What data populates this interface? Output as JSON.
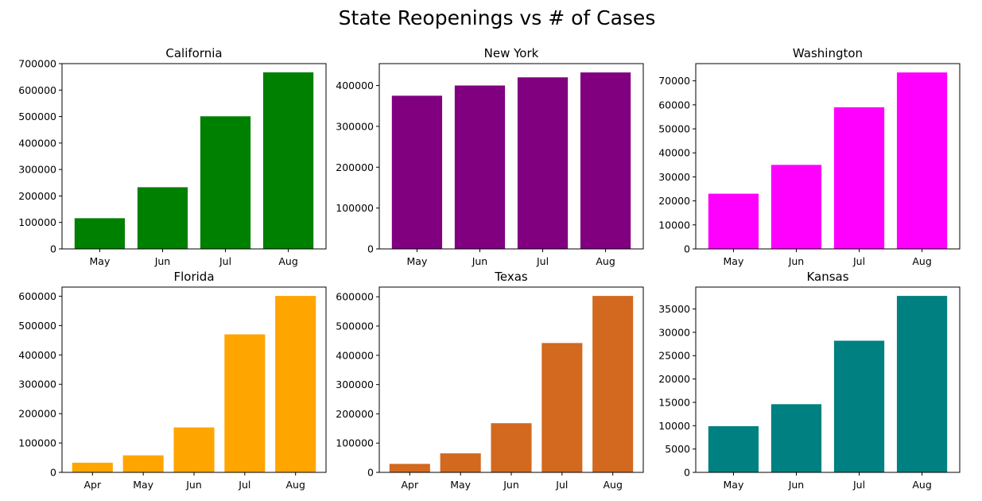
{
  "suptitle": "State Reopenings vs # of Cases",
  "chart_data": [
    {
      "type": "bar",
      "title": "California",
      "categories": [
        "May",
        "Jun",
        "Jul",
        "Aug"
      ],
      "values": [
        116000,
        233000,
        501000,
        667000
      ],
      "color": "#008000",
      "ylim": [
        0,
        700000
      ],
      "yticks": [
        "0",
        "100000",
        "200000",
        "300000",
        "400000",
        "500000",
        "600000",
        "700000"
      ],
      "xlabel": "",
      "ylabel": "",
      "grid": false
    },
    {
      "type": "bar",
      "title": "New York",
      "categories": [
        "May",
        "Jun",
        "Jul",
        "Aug"
      ],
      "values": [
        375000,
        400000,
        420000,
        432000
      ],
      "color": "#800080",
      "ylim": [
        0,
        453600
      ],
      "yticks": [
        "0",
        "100000",
        "200000",
        "300000",
        "400000"
      ],
      "xlabel": "",
      "ylabel": "",
      "grid": false
    },
    {
      "type": "bar",
      "title": "Washington",
      "categories": [
        "May",
        "Jun",
        "Jul",
        "Aug"
      ],
      "values": [
        23000,
        35000,
        59000,
        73500
      ],
      "color": "#ff00ff",
      "ylim": [
        0,
        77175
      ],
      "yticks": [
        "0",
        "10000",
        "20000",
        "30000",
        "40000",
        "50000",
        "60000",
        "70000"
      ],
      "xlabel": "",
      "ylabel": "",
      "grid": false
    },
    {
      "type": "bar",
      "title": "Florida",
      "categories": [
        "Apr",
        "May",
        "Jun",
        "Jul",
        "Aug"
      ],
      "values": [
        33000,
        58000,
        153000,
        470000,
        601000
      ],
      "color": "#ffa500",
      "ylim": [
        0,
        631050
      ],
      "yticks": [
        "0",
        "100000",
        "200000",
        "300000",
        "400000",
        "500000",
        "600000"
      ],
      "xlabel": "",
      "ylabel": "",
      "grid": false
    },
    {
      "type": "bar",
      "title": "Texas",
      "categories": [
        "Apr",
        "May",
        "Jun",
        "Jul",
        "Aug"
      ],
      "values": [
        29000,
        65000,
        168000,
        442000,
        603000
      ],
      "color": "#d2691e",
      "ylim": [
        0,
        633150
      ],
      "yticks": [
        "0",
        "100000",
        "200000",
        "300000",
        "400000",
        "500000",
        "600000"
      ],
      "xlabel": "",
      "ylabel": "",
      "grid": false
    },
    {
      "type": "bar",
      "title": "Kansas",
      "categories": [
        "May",
        "Jun",
        "Jul",
        "Aug"
      ],
      "values": [
        9900,
        14600,
        28200,
        37800
      ],
      "color": "#008080",
      "ylim": [
        0,
        39690
      ],
      "yticks": [
        "0",
        "5000",
        "10000",
        "15000",
        "20000",
        "25000",
        "30000",
        "35000"
      ],
      "xlabel": "",
      "ylabel": "",
      "grid": false
    }
  ]
}
